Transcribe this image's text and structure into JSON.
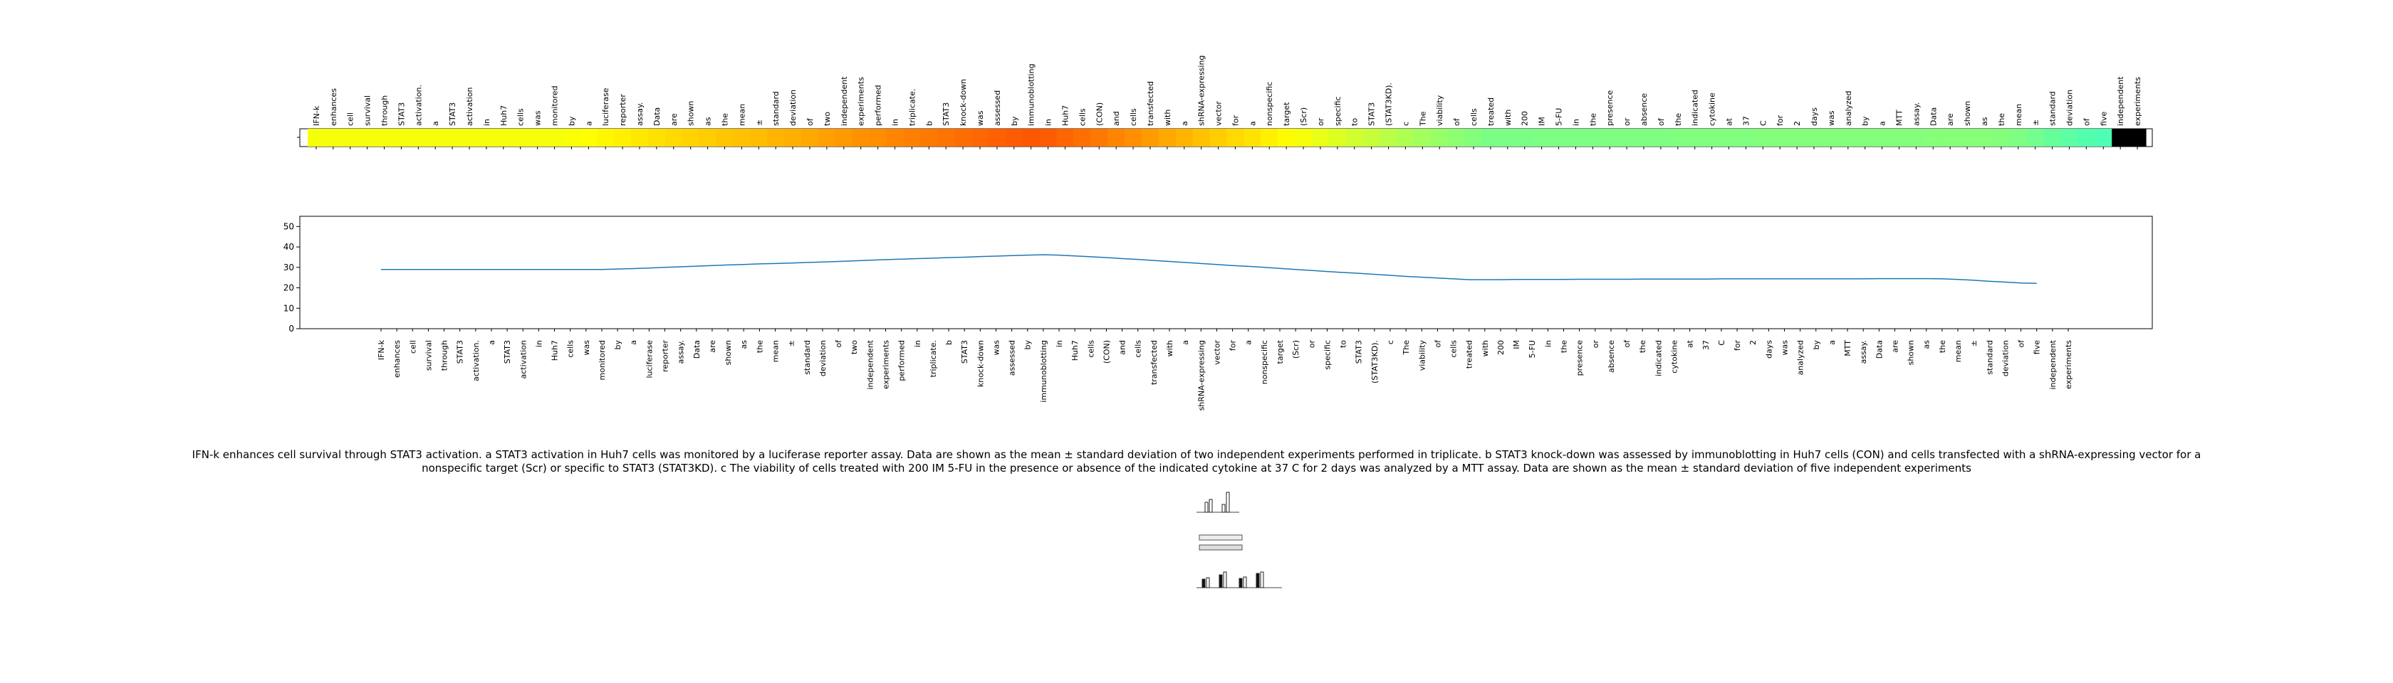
{
  "chart_data": [
    {
      "type": "heatmap",
      "colormap": "jet",
      "tokens": [
        "IFN-k",
        "enhances",
        "cell",
        "survival",
        "through",
        "STAT3",
        "activation.",
        "a",
        "STAT3",
        "activation",
        "in",
        "Huh7",
        "cells",
        "was",
        "monitored",
        "by",
        "a",
        "luciferase",
        "reporter",
        "assay.",
        "Data",
        "are",
        "shown",
        "as",
        "the",
        "mean",
        "±",
        "standard",
        "deviation",
        "of",
        "two",
        "independent",
        "experiments",
        "performed",
        "in",
        "triplicate.",
        "b",
        "STAT3",
        "knock-down",
        "was",
        "assessed",
        "by",
        "immunoblotting",
        "in",
        "Huh7",
        "cells",
        "(CON)",
        "and",
        "cells",
        "transfected",
        "with",
        "a",
        "shRNA-expressing",
        "vector",
        "for",
        "a",
        "nonspecific",
        "target",
        "(Scr)",
        "or",
        "specific",
        "to",
        "STAT3",
        "(STAT3KD).",
        "c",
        "The",
        "viability",
        "of",
        "cells",
        "treated",
        "with",
        "200",
        "IM",
        "5-FU",
        "in",
        "the",
        "presence",
        "or",
        "absence",
        "of",
        "the",
        "indicated",
        "cytokine",
        "at",
        "37",
        "C",
        "for",
        "2",
        "days",
        "was",
        "analyzed",
        "by",
        "a",
        "MTT",
        "assay.",
        "Data",
        "are",
        "shown",
        "as",
        "the",
        "mean",
        "±",
        "standard",
        "deviation",
        "of",
        "five",
        "independent",
        "experiments"
      ],
      "values": [
        29.0,
        29.0,
        29.0,
        29.0,
        29.0,
        29.0,
        29.0,
        29.0,
        29.0,
        29.0,
        29.0,
        29.0,
        29.0,
        29.0,
        29.0,
        29.2,
        29.4,
        29.7,
        30.0,
        30.3,
        30.6,
        30.9,
        31.2,
        31.4,
        31.7,
        31.9,
        32.1,
        32.4,
        32.6,
        32.9,
        33.2,
        33.5,
        33.8,
        34.0,
        34.3,
        34.5,
        34.8,
        35.0,
        35.3,
        35.5,
        35.8,
        36.0,
        36.2,
        36.0,
        35.6,
        35.2,
        34.8,
        34.3,
        33.9,
        33.4,
        32.9,
        32.4,
        31.9,
        31.4,
        30.9,
        30.5,
        30.0,
        29.5,
        29.0,
        28.5,
        28.0,
        27.5,
        27.1,
        26.6,
        26.1,
        25.6,
        25.2,
        24.8,
        24.4,
        24.0,
        24.0,
        24.0,
        24.1,
        24.1,
        24.1,
        24.1,
        24.2,
        24.2,
        24.2,
        24.2,
        24.3,
        24.3,
        24.3,
        24.3,
        24.3,
        24.4,
        24.4,
        24.4,
        24.4,
        24.4,
        24.4,
        24.4,
        24.4,
        24.4,
        24.4,
        24.5,
        24.5,
        24.5,
        24.5,
        24.4,
        24.1,
        23.7,
        23.2,
        22.8,
        22.4,
        22.2
      ]
    },
    {
      "type": "line",
      "categories_ref": "tokens",
      "ylim": [
        0,
        55
      ],
      "yticks": [
        "0",
        "10",
        "20",
        "30",
        "40",
        "50"
      ]
    }
  ],
  "caption": "IFN-k enhances cell survival through STAT3 activation. a STAT3 activation in Huh7 cells was monitored by a luciferase reporter assay. Data are shown as the mean ± standard deviation of two independent experiments performed in triplicate. b STAT3 knock-down was assessed by immunoblotting in Huh7 cells (CON) and cells transfected with a shRNA-expressing vector for a nonspecific target (Scr) or specific to STAT3 (STAT3KD). c The viability of cells treated with 200 IM 5-FU in the presence or absence of the indicated cytokine at 37 C for 2 days was analyzed by a MTT assay. Data are shown as the mean ± standard deviation of five independent experiments",
  "colors": {
    "line": "#1f77b4",
    "axis": "#000000"
  }
}
